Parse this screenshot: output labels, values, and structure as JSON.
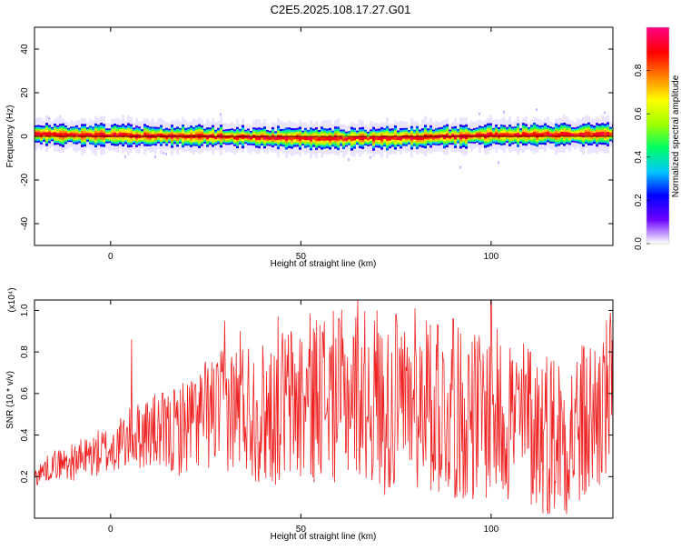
{
  "title": "C2E5.2025.108.17.27.G01",
  "chart_data": [
    {
      "type": "heatmap",
      "xlabel": "Height of straight line (km)",
      "ylabel": "Frequency (Hz)",
      "xlim": [
        -20,
        132
      ],
      "ylim": [
        -50,
        50
      ],
      "xticks": [
        0,
        50,
        100
      ],
      "yticks": [
        -40,
        -20,
        0,
        20,
        40
      ],
      "colorbar": {
        "label": "Normalized spectral amplitude",
        "range": [
          0,
          1
        ],
        "ticks": [
          "0.0",
          "0.2",
          "0.4",
          "0.6",
          "0.8"
        ],
        "colormap": [
          "#ffffff",
          "#6a00ff",
          "#0000ff",
          "#00c8ff",
          "#00ff64",
          "#a0ff00",
          "#ffff00",
          "#ff8000",
          "#ff0000",
          "#ff0080"
        ]
      },
      "band_center_hz": [
        1.0,
        0.5,
        0.0,
        -0.5,
        -1.0,
        -0.5,
        0.5,
        0.8,
        1.0
      ],
      "band_center_x": [
        -20,
        0,
        20,
        40,
        60,
        80,
        100,
        115,
        132
      ],
      "band_halfwidth_hz": 4,
      "grid": false
    },
    {
      "type": "line",
      "xlabel": "Height of straight line (km)",
      "ylabel": "SNR (10 * v/v)",
      "yscale_label": "(x10⁴)",
      "xlim": [
        -20,
        132
      ],
      "ylim": [
        0,
        1.05
      ],
      "xticks": [
        0,
        50,
        100
      ],
      "yticks": [
        0.2,
        0.4,
        0.6,
        0.8,
        1.0
      ],
      "series": [
        {
          "color": "#ee2222",
          "x": [
            -20,
            -15,
            -10,
            -5,
            0,
            5,
            10,
            15,
            20,
            25,
            30,
            35,
            40,
            45,
            50,
            55,
            60,
            65,
            70,
            75,
            80,
            85,
            90,
            95,
            100,
            105,
            110,
            115,
            120,
            125,
            130,
            132
          ],
          "y": [
            0.2,
            0.26,
            0.27,
            0.3,
            0.33,
            0.38,
            0.42,
            0.4,
            0.45,
            0.5,
            0.52,
            0.55,
            0.5,
            0.55,
            0.55,
            0.6,
            0.58,
            0.62,
            0.55,
            0.5,
            0.55,
            0.52,
            0.5,
            0.5,
            0.5,
            0.48,
            0.45,
            0.42,
            0.4,
            0.45,
            0.55,
            0.6
          ],
          "peaks_x": [
            5.5,
            30,
            34,
            44,
            55,
            60,
            65,
            70,
            75,
            80,
            83,
            86,
            90,
            95,
            100,
            105,
            110
          ],
          "peaks_y": [
            0.86,
            0.95,
            0.9,
            0.97,
            0.93,
            0.96,
            1.05,
            1.0,
            0.98,
            1.01,
            0.95,
            0.93,
            0.96,
            0.85,
            1.05,
            0.82,
            0.8
          ]
        }
      ]
    }
  ]
}
